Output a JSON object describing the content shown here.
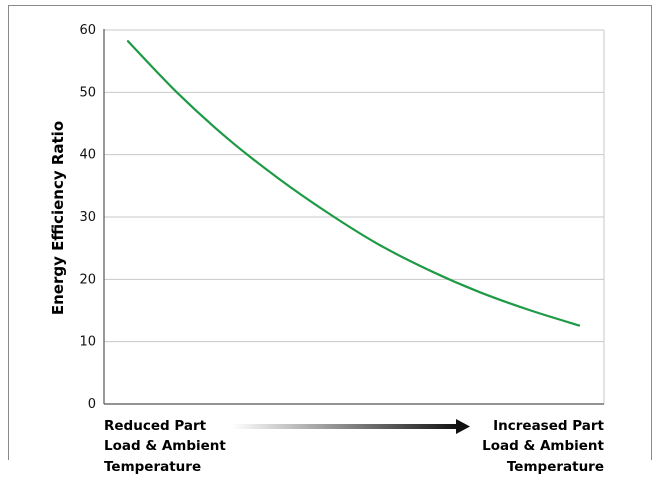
{
  "chart_data": {
    "type": "line",
    "title": "",
    "ylabel": "Energy Efficiency Ratio",
    "xlabel": "",
    "ylim": [
      0,
      60
    ],
    "yticks": [
      0,
      10,
      20,
      30,
      40,
      50,
      60
    ],
    "grid": true,
    "x_annotation": {
      "left_label": [
        "Reduced Part",
        "Load & Ambient",
        "Temperature"
      ],
      "right_label": [
        "Increased Part",
        "Load & Ambient",
        "Temperature"
      ]
    },
    "series": [
      {
        "color": "#1e9a46",
        "x": [
          0,
          1,
          2,
          3,
          4,
          5,
          6,
          7,
          8,
          9,
          10
        ],
        "y": [
          58.2,
          49.8,
          42.5,
          36.2,
          30.6,
          25.6,
          21.5,
          18.0,
          15.1,
          12.6,
          null
        ]
      }
    ]
  }
}
